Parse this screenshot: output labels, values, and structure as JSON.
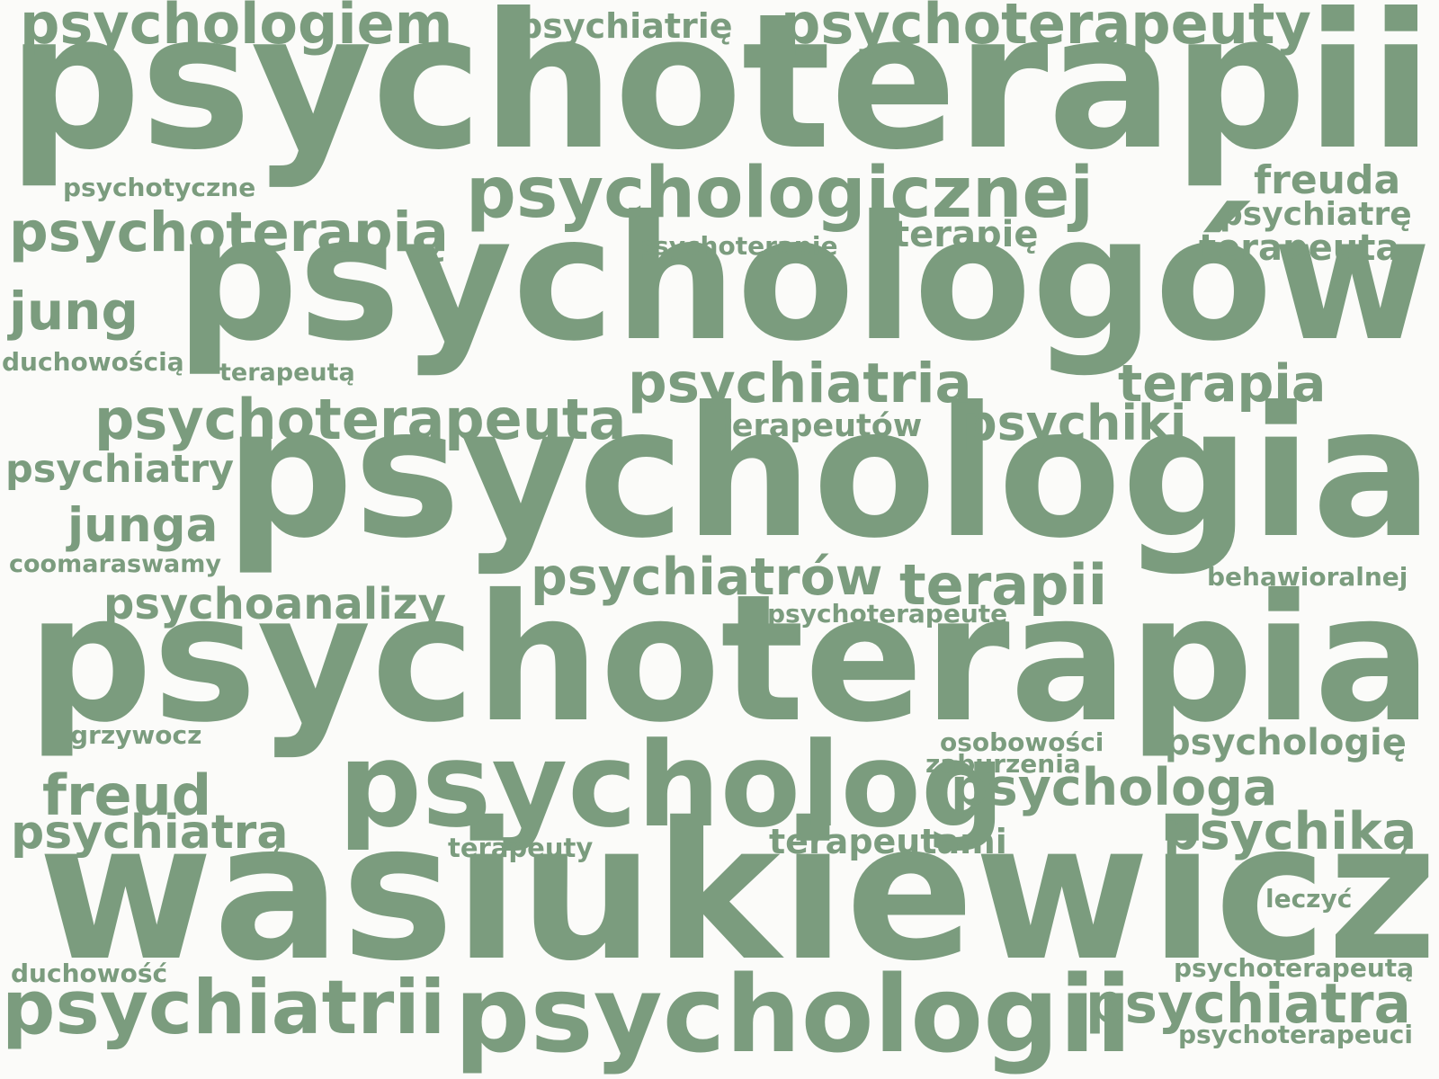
{
  "colors": {
    "background": "#fbfbf9",
    "word": "#7b9c7e"
  },
  "words": [
    "psychoterapii",
    "psychologów",
    "psychologia",
    "psychoterapia",
    "wasiukiewicz",
    "psycholog",
    "psychologii",
    "psychologicznej",
    "psychoterapeuty",
    "psychologiem",
    "psychoterapią",
    "psychoterapeuta",
    "psychiatria",
    "psychiatrii",
    "psychiatrów",
    "psychologa",
    "terapii",
    "psychiatra",
    "terapia",
    "psychiki",
    "psychiką",
    "psychoanalizy",
    "freud",
    "psychiatrą",
    "jung",
    "junga",
    "psychiatry",
    "freuda",
    "terapię",
    "terapeuta",
    "psychologię",
    "psychiatrię",
    "psychiatrę",
    "terapeutami",
    "terapeutów",
    "psychoterapeutę",
    "psychoterapię",
    "terapeuty",
    "terapeutą",
    "osobowości",
    "zaburzenia",
    "psychotyczne",
    "duchowością",
    "coomaraswamy",
    "behawioralnej",
    "grzywocz",
    "leczyć",
    "duchowość",
    "psychoterapeutą",
    "psychoterapeuci"
  ]
}
